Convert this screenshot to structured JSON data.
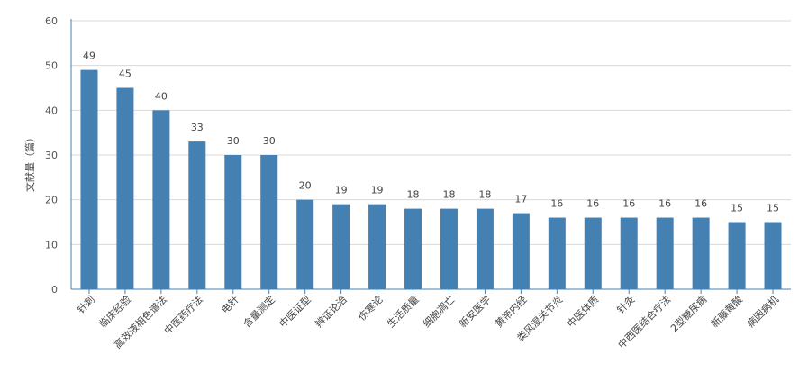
{
  "chart_data": {
    "type": "bar",
    "title": "",
    "xlabel": "",
    "ylabel": "文献量（篇）",
    "ylim": [
      0,
      60
    ],
    "yticks": [
      0,
      10,
      20,
      30,
      40,
      50,
      60
    ],
    "grid": true,
    "bar_color": "#4580b3",
    "categories": [
      "针刺",
      "临床经验",
      "高效液相色谱法",
      "中医药疗法",
      "电针",
      "含量测定",
      "中医证型",
      "辨证论治",
      "伤寒论",
      "生活质量",
      "细胞凋亡",
      "新安医学",
      "黄帝内经",
      "类风湿关节炎",
      "中医体质",
      "针灸",
      "中西医结合疗法",
      "2型糖尿病",
      "新藤黄酸",
      "病因病机"
    ],
    "values": [
      49,
      45,
      40,
      33,
      30,
      30,
      20,
      19,
      19,
      18,
      18,
      18,
      17,
      16,
      16,
      16,
      16,
      16,
      15,
      15
    ]
  }
}
